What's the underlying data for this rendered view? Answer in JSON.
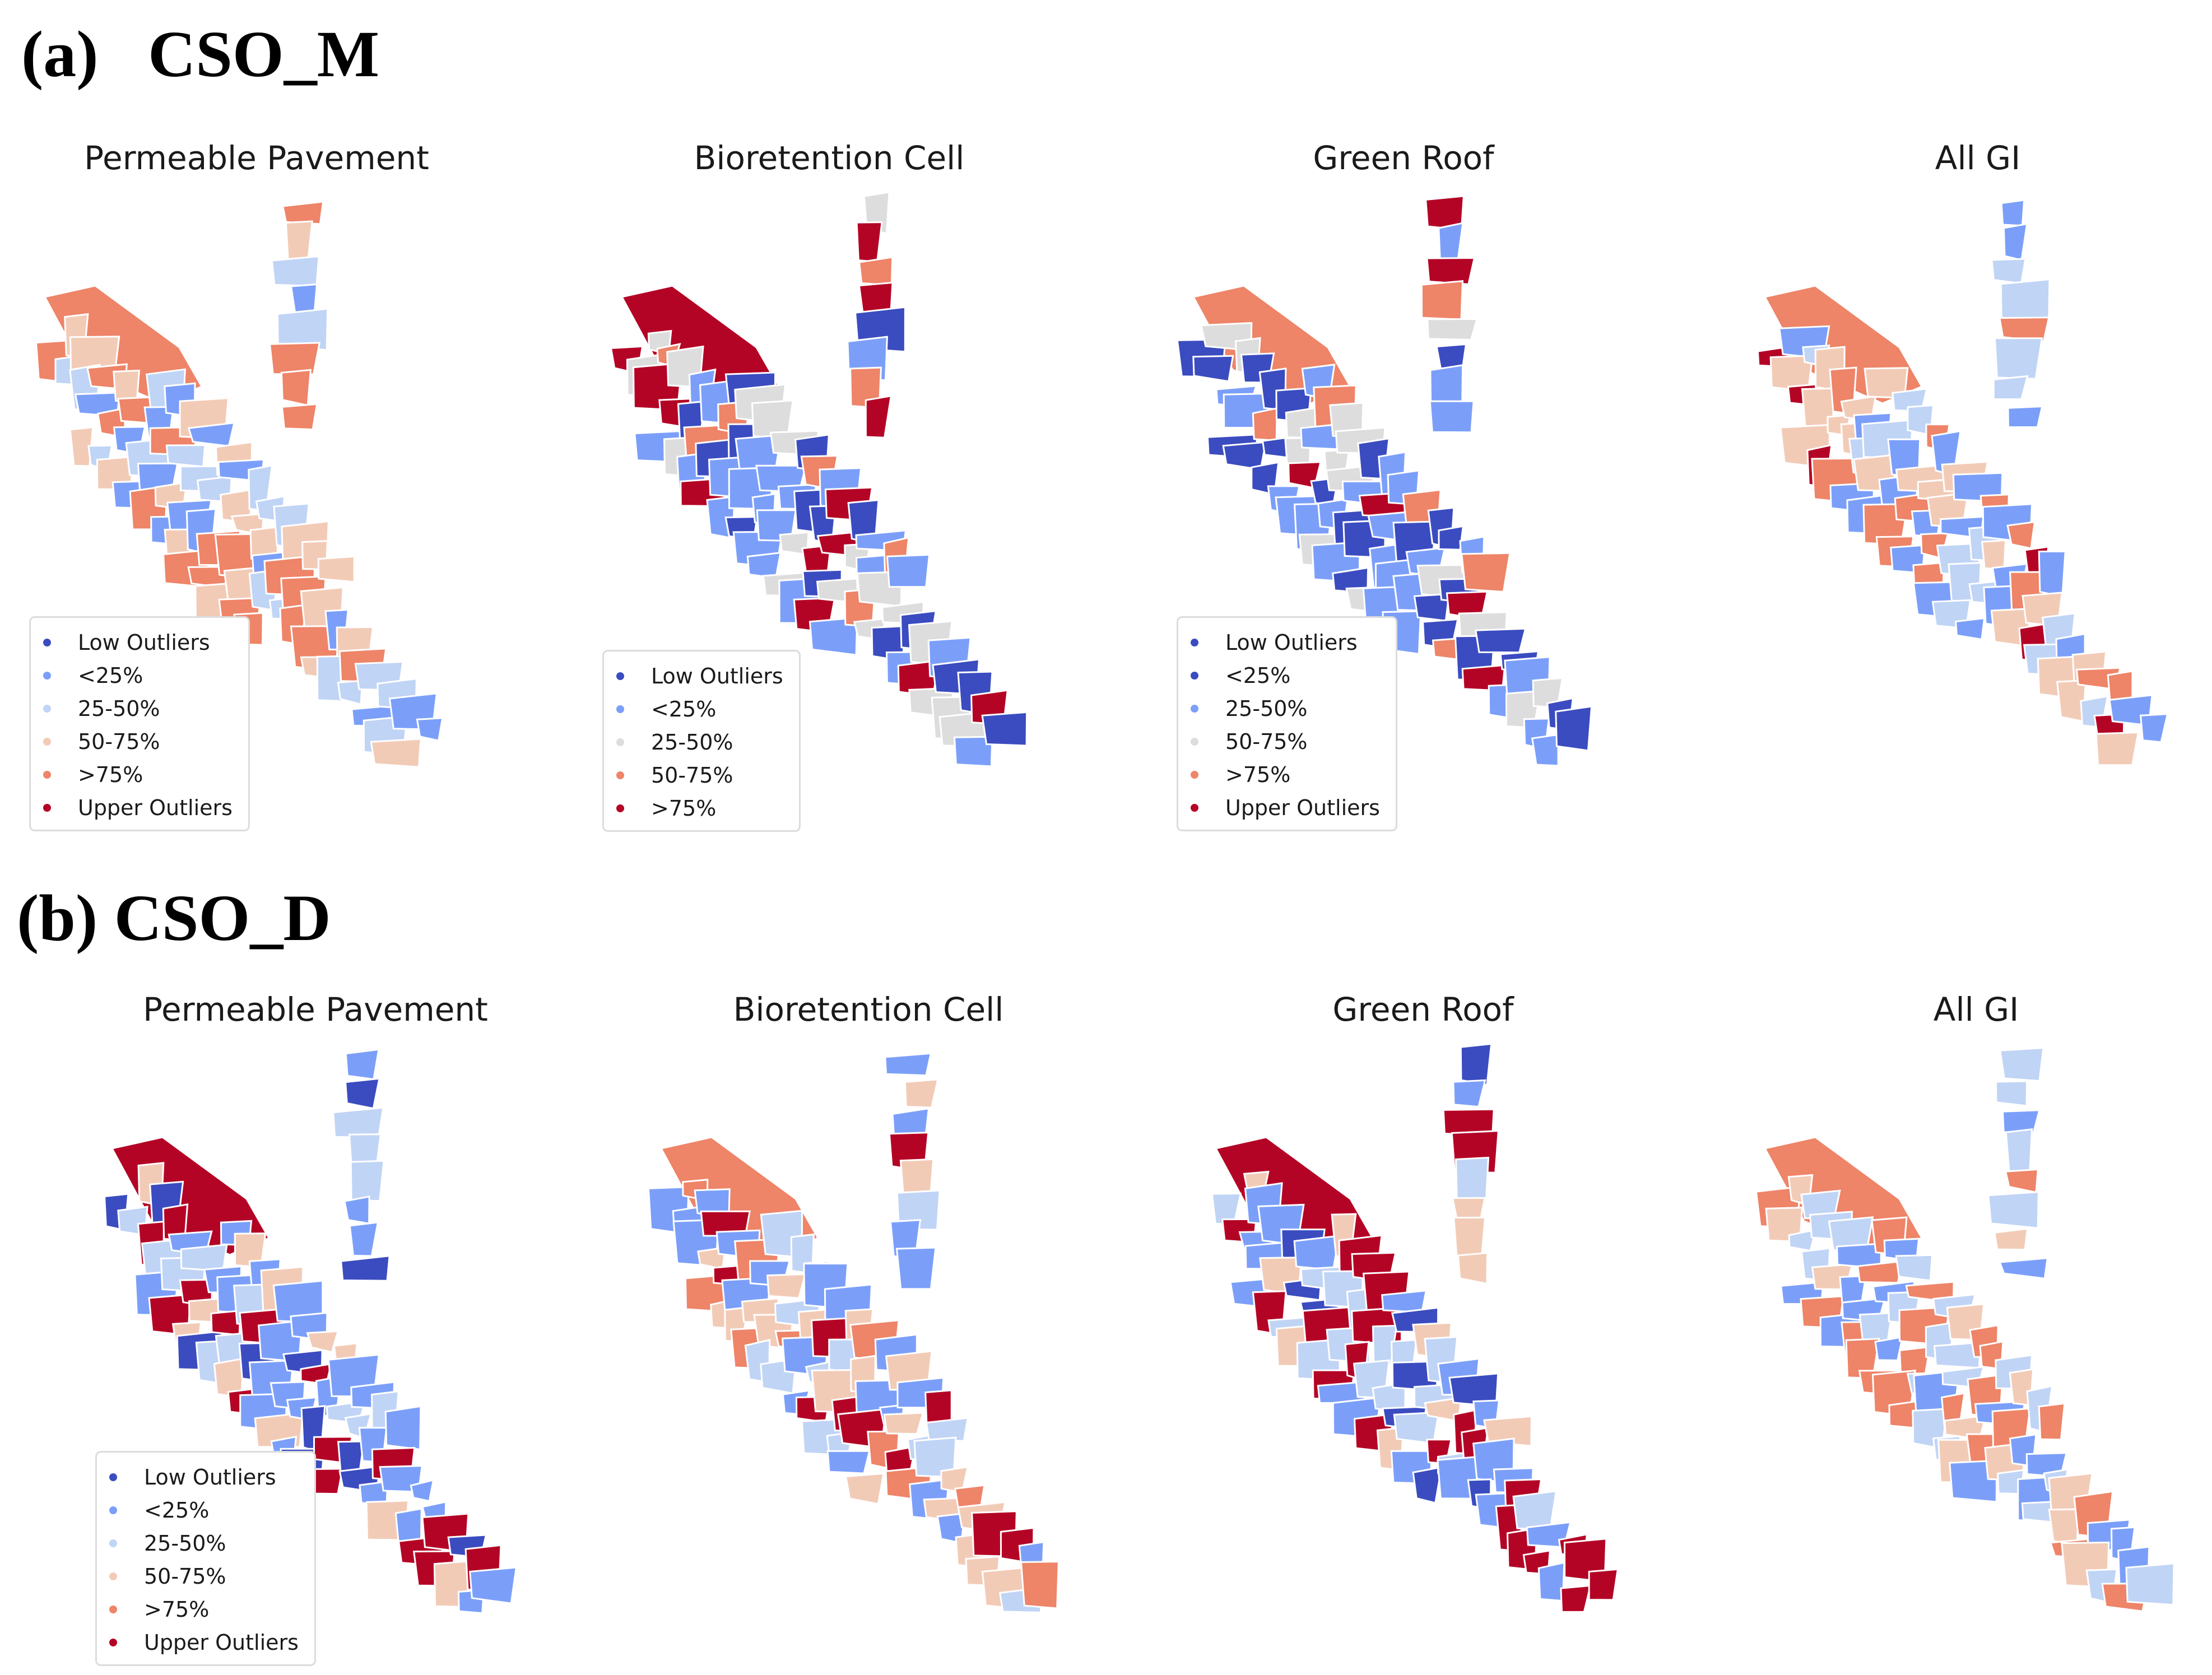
{
  "colors": {
    "low_outliers": "#3b4cc0",
    "lt25": "#7b9ff9",
    "p25_50": "#c0d4f5",
    "p50_75": "#f2cbb7",
    "gt75": "#ee8468",
    "upper_outliers": "#b40426",
    "mid_grey": "#dddddd"
  },
  "sections": [
    {
      "title": "(a)   CSO_M",
      "maps": [
        {
          "title": "Permeable Pavement",
          "legend": [
            "Low Outliers",
            "<25%",
            "25-50%",
            "50-75%",
            ">75%",
            "Upper Outliers"
          ],
          "legend_colors": [
            "#3b4cc0",
            "#7b9ff9",
            "#c0d4f5",
            "#f2cbb7",
            "#ee8468",
            "#b40426"
          ],
          "palette": [
            "#7b9ff9",
            "#c0d4f5",
            "#f2cbb7",
            "#ee8468",
            "#ee8468",
            "#c0d4f5",
            "#7b9ff9",
            "#f2cbb7"
          ]
        },
        {
          "title": "Bioretention Cell",
          "legend": [
            "Low Outliers",
            "<25%",
            "25-50%",
            "50-75%",
            ">75%"
          ],
          "legend_colors": [
            "#3b4cc0",
            "#7b9ff9",
            "#dddddd",
            "#ee8468",
            "#b40426"
          ],
          "palette": [
            "#7b9ff9",
            "#dddddd",
            "#ee8468",
            "#b40426",
            "#b40426",
            "#7b9ff9",
            "#dddddd",
            "#3b4cc0"
          ]
        },
        {
          "title": "Green Roof",
          "legend": [
            "Low Outliers",
            "<25%",
            "25-50%",
            "50-75%",
            ">75%",
            "Upper Outliers"
          ],
          "legend_colors": [
            "#3b4cc0",
            "#3b4cc0",
            "#7b9ff9",
            "#dddddd",
            "#ee8468",
            "#b40426"
          ],
          "palette": [
            "#3b4cc0",
            "#7b9ff9",
            "#dddddd",
            "#ee8468",
            "#7b9ff9",
            "#dddddd",
            "#3b4cc0",
            "#b40426"
          ]
        },
        {
          "title": "All GI",
          "legend": [],
          "legend_colors": [],
          "palette": [
            "#7b9ff9",
            "#c0d4f5",
            "#f2cbb7",
            "#ee8468",
            "#c0d4f5",
            "#7b9ff9",
            "#f2cbb7",
            "#b40426"
          ]
        }
      ]
    },
    {
      "title": "(b) CSO_D",
      "maps": [
        {
          "title": "Permeable Pavement",
          "legend": [
            "Low Outliers",
            "<25%",
            "25-50%",
            "50-75%",
            ">75%",
            "Upper Outliers"
          ],
          "legend_colors": [
            "#3b4cc0",
            "#7b9ff9",
            "#c0d4f5",
            "#f2cbb7",
            "#ee8468",
            "#b40426"
          ],
          "palette": [
            "#7b9ff9",
            "#c0d4f5",
            "#b40426",
            "#b40426",
            "#7b9ff9",
            "#c0d4f5",
            "#3b4cc0",
            "#f2cbb7"
          ]
        },
        {
          "title": "Bioretention Cell",
          "legend": [],
          "legend_colors": [],
          "palette": [
            "#7b9ff9",
            "#c0d4f5",
            "#f2cbb7",
            "#ee8468",
            "#b40426",
            "#c0d4f5",
            "#7b9ff9",
            "#f2cbb7"
          ]
        },
        {
          "title": "Green Roof",
          "legend": [],
          "legend_colors": [],
          "palette": [
            "#7b9ff9",
            "#c0d4f5",
            "#b40426",
            "#b40426",
            "#3b4cc0",
            "#c0d4f5",
            "#7b9ff9",
            "#f2cbb7"
          ]
        },
        {
          "title": "All GI",
          "legend": [],
          "legend_colors": [],
          "palette": [
            "#7b9ff9",
            "#c0d4f5",
            "#f2cbb7",
            "#ee8468",
            "#ee8468",
            "#c0d4f5",
            "#f2cbb7",
            "#7b9ff9"
          ]
        }
      ]
    }
  ]
}
